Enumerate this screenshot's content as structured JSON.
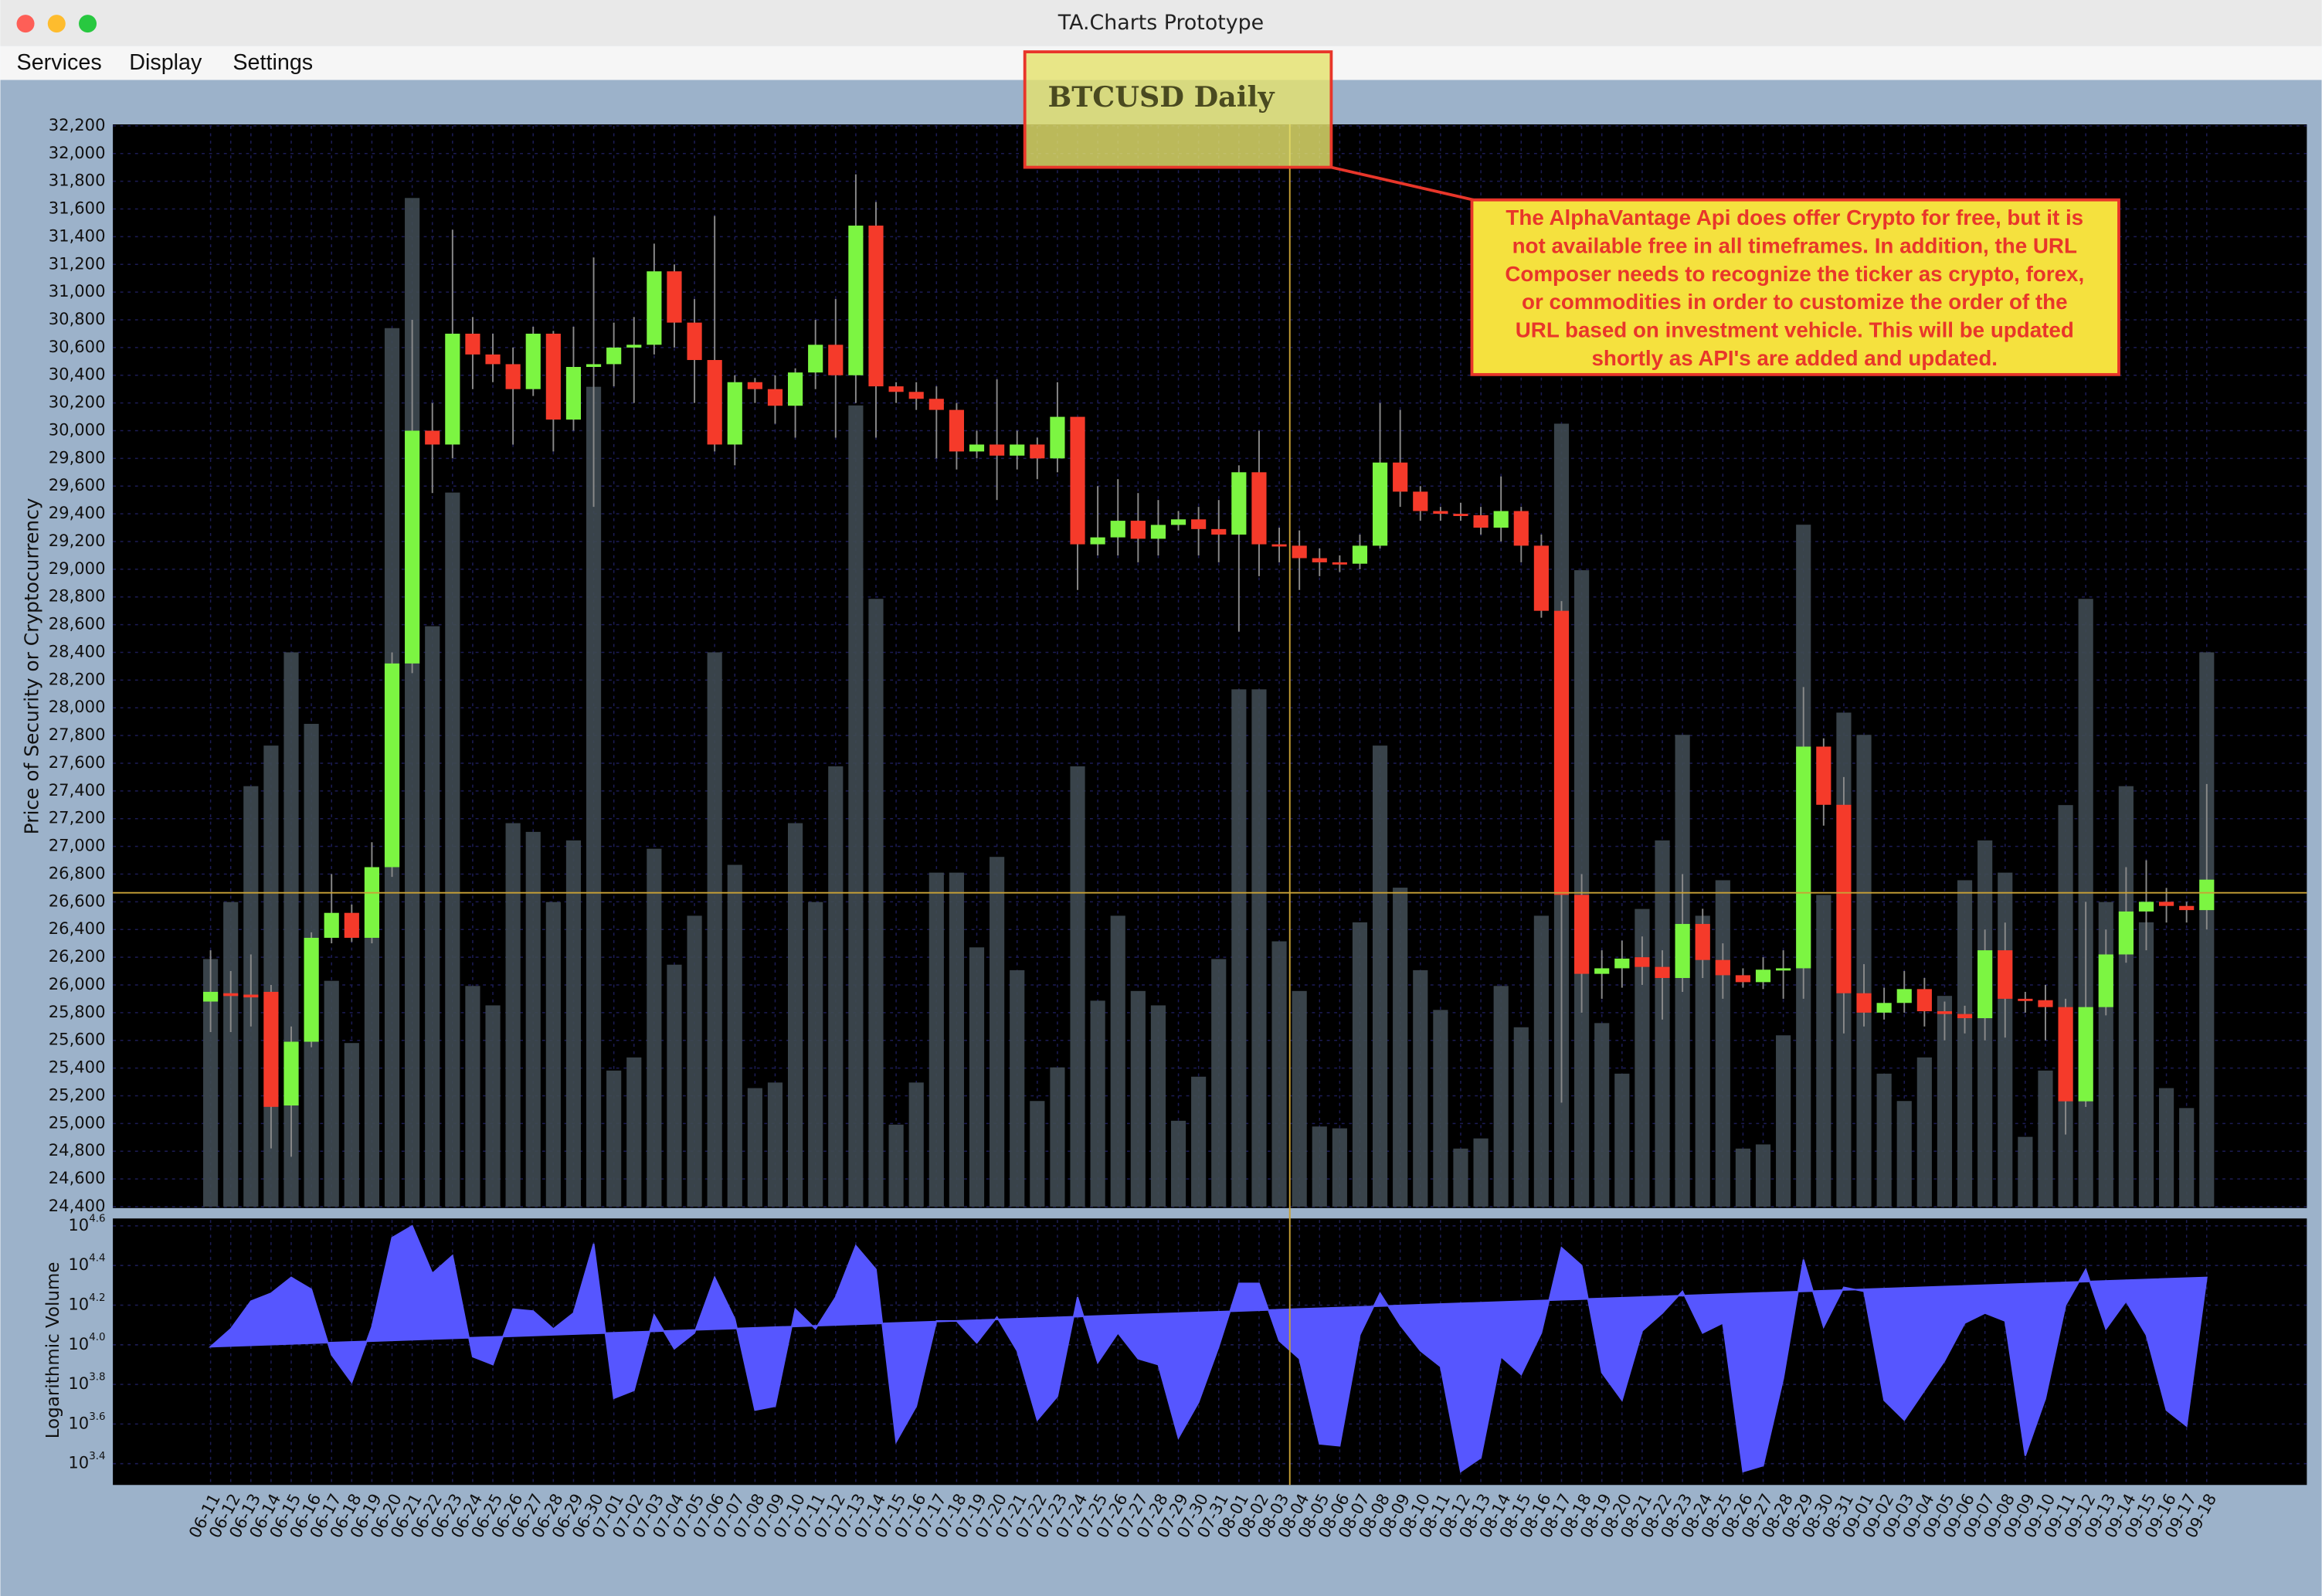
{
  "window": {
    "title": "TA.Charts Prototype",
    "menu": [
      "Services",
      "Display",
      "Settings"
    ]
  },
  "chart_data": {
    "type": "candlestick",
    "title": "BTCUSD Daily",
    "annotation": [
      "The AlphaVantage Api does offer Crypto for free, but it is",
      "not available free in all timeframes. In addition, the URL",
      "Composer needs to recognize the ticker as crypto, forex,",
      "or commodities in order to customize the order of the",
      "URL based on investment vehicle. This will be updated",
      "shortly as API's are added and updated."
    ],
    "ylabel": "Price of Security or Cryptocurrency",
    "y2label": "Logarithmic Volume",
    "up_color": "#7cf542",
    "down_color": "#f53a2a",
    "volume_color": "#3f4a52",
    "area_color": "#5656ff",
    "grid": true,
    "categories": [
      "06-11",
      "06-12",
      "06-13",
      "06-14",
      "06-15",
      "06-16",
      "06-17",
      "06-18",
      "06-19",
      "06-20",
      "06-21",
      "06-22",
      "06-23",
      "06-24",
      "06-25",
      "06-26",
      "06-27",
      "06-28",
      "06-29",
      "06-30",
      "07-01",
      "07-02",
      "07-03",
      "07-04",
      "07-05",
      "07-06",
      "07-07",
      "07-08",
      "07-09",
      "07-10",
      "07-11",
      "07-12",
      "07-13",
      "07-14",
      "07-15",
      "07-16",
      "07-17",
      "07-18",
      "07-19",
      "07-20",
      "07-21",
      "07-22",
      "07-23",
      "07-24",
      "07-25",
      "07-26",
      "07-27",
      "07-28",
      "07-29",
      "07-30",
      "07-31",
      "08-01",
      "08-02",
      "08-03",
      "08-04",
      "08-05",
      "08-06",
      "08-07",
      "08-08",
      "08-09",
      "08-10",
      "08-11",
      "08-12",
      "08-13",
      "08-14",
      "08-15",
      "08-16",
      "08-17",
      "08-18",
      "08-19",
      "08-20",
      "08-21",
      "08-22",
      "08-23",
      "08-24",
      "08-25",
      "08-26",
      "08-27",
      "08-28",
      "08-29",
      "08-30",
      "08-31",
      "09-01",
      "09-02",
      "09-03",
      "09-04",
      "09-05",
      "09-06",
      "09-07",
      "09-08",
      "09-09",
      "09-10",
      "09-11",
      "09-12",
      "09-13",
      "09-14",
      "09-15",
      "09-16",
      "09-17",
      "09-18"
    ],
    "open": [
      25880,
      25940,
      25930,
      25950,
      25130,
      25590,
      26340,
      26520,
      26340,
      26850,
      28320,
      30000,
      29900,
      30700,
      30550,
      30480,
      30300,
      30700,
      30080,
      30460,
      30480,
      30600,
      30620,
      31150,
      30780,
      30510,
      29900,
      30350,
      30300,
      30180,
      30420,
      30620,
      30400,
      31480,
      30320,
      30280,
      30230,
      30150,
      29850,
      29900,
      29820,
      29900,
      29800,
      30100,
      29180,
      29230,
      29350,
      29220,
      29320,
      29360,
      29290,
      29250,
      29700,
      29180,
      29170,
      29080,
      29050,
      29040,
      29170,
      29770,
      29560,
      29420,
      29400,
      29390,
      29300,
      29420,
      29170,
      28700,
      26650,
      26080,
      26120,
      26200,
      26130,
      26050,
      26440,
      26180,
      26070,
      26020,
      26110,
      26120,
      27720,
      27300,
      25940,
      25800,
      25870,
      25970,
      25810,
      25790,
      25760,
      26250,
      25900,
      25890,
      25840,
      25160,
      25840,
      26220,
      26530,
      26600,
      26570,
      26540
    ],
    "high": [
      26250,
      26100,
      26220,
      26000,
      25700,
      26380,
      26800,
      26580,
      27030,
      28400,
      30800,
      30200,
      31450,
      30820,
      30700,
      30600,
      30750,
      30720,
      30750,
      31250,
      30780,
      30820,
      31350,
      31200,
      30950,
      31550,
      30400,
      30380,
      30400,
      30450,
      30800,
      30950,
      31850,
      31650,
      30350,
      30350,
      30320,
      30200,
      30000,
      30370,
      30000,
      29950,
      30350,
      30100,
      29600,
      29650,
      29550,
      29500,
      29420,
      29450,
      29500,
      29750,
      30000,
      29300,
      29280,
      29150,
      29100,
      29250,
      30200,
      30150,
      29600,
      29450,
      29480,
      29450,
      29670,
      29450,
      29250,
      28770,
      26800,
      26250,
      26320,
      26350,
      26250,
      26800,
      26550,
      26300,
      26120,
      26200,
      26250,
      28150,
      27780,
      27500,
      26150,
      25980,
      26100,
      26050,
      25880,
      25850,
      26400,
      26450,
      25950,
      26000,
      25900,
      26600,
      26400,
      26850,
      26900,
      26700,
      26600,
      27450
    ],
    "low": [
      25660,
      25660,
      25700,
      24820,
      24760,
      25550,
      26300,
      26310,
      26300,
      26780,
      28250,
      29550,
      29800,
      30300,
      30350,
      29900,
      30250,
      29850,
      30000,
      29450,
      30320,
      30200,
      30550,
      30600,
      30200,
      29850,
      29750,
      30200,
      30050,
      29950,
      30300,
      29950,
      30200,
      29950,
      30200,
      30150,
      29800,
      29720,
      29800,
      29500,
      29720,
      29650,
      29700,
      28850,
      29100,
      29100,
      29050,
      29100,
      29280,
      29100,
      29050,
      28550,
      28950,
      29050,
      28850,
      28950,
      28980,
      29000,
      29150,
      29450,
      29350,
      29350,
      29350,
      29250,
      29200,
      29050,
      28650,
      25150,
      25800,
      25900,
      25980,
      26000,
      25750,
      25950,
      26050,
      25900,
      25980,
      25970,
      25900,
      25900,
      27150,
      25650,
      25700,
      25750,
      25800,
      25700,
      25600,
      25650,
      25600,
      25620,
      25800,
      25600,
      24920,
      25120,
      25780,
      26160,
      26250,
      26450,
      26450,
      26400
    ],
    "close": [
      25950,
      25920,
      25910,
      25120,
      25590,
      26340,
      26520,
      26340,
      26850,
      28320,
      30000,
      29900,
      30700,
      30550,
      30480,
      30300,
      30700,
      30080,
      30460,
      30480,
      30600,
      30620,
      31150,
      30780,
      30510,
      29900,
      30350,
      30300,
      30180,
      30420,
      30620,
      30400,
      31480,
      30320,
      30280,
      30230,
      30150,
      29850,
      29900,
      29820,
      29900,
      29800,
      30100,
      29180,
      29230,
      29350,
      29220,
      29320,
      29360,
      29290,
      29250,
      29700,
      29180,
      29170,
      29080,
      29050,
      29040,
      29170,
      29770,
      29560,
      29420,
      29400,
      29390,
      29300,
      29420,
      29170,
      28700,
      26650,
      26080,
      26120,
      26190,
      26130,
      26050,
      26440,
      26180,
      26070,
      26020,
      26110,
      26120,
      27720,
      27300,
      25940,
      25800,
      25870,
      25970,
      25810,
      25790,
      25760,
      26250,
      25900,
      25890,
      25840,
      25160,
      25840,
      26220,
      26530,
      26600,
      26570,
      26540,
      26760
    ],
    "volume": [
      3.99,
      4.08,
      4.22,
      4.26,
      4.34,
      4.28,
      3.95,
      3.81,
      4.09,
      4.54,
      4.6,
      4.36,
      4.45,
      3.94,
      3.9,
      4.18,
      4.17,
      4.08,
      4.16,
      4.51,
      3.73,
      3.77,
      4.15,
      3.98,
      4.06,
      4.34,
      4.13,
      3.67,
      3.69,
      4.18,
      4.08,
      4.24,
      4.5,
      4.38,
      3.51,
      3.69,
      4.12,
      4.12,
      4.01,
      4.14,
      3.97,
      3.62,
      3.74,
      4.24,
      3.91,
      4.06,
      3.93,
      3.9,
      3.53,
      3.71,
      3.99,
      4.31,
      4.31,
      4.02,
      3.93,
      3.5,
      3.49,
      4.05,
      4.26,
      4.1,
      3.97,
      3.89,
      3.36,
      3.43,
      3.94,
      3.85,
      4.06,
      4.49,
      4.4,
      3.86,
      3.72,
      4.07,
      4.16,
      4.27,
      4.06,
      4.11,
      3.36,
      3.39,
      3.83,
      4.43,
      4.09,
      4.29,
      4.27,
      3.72,
      3.62,
      3.77,
      3.92,
      4.11,
      4.16,
      4.12,
      3.44,
      3.73,
      4.2,
      4.38,
      4.08,
      4.22,
      4.05,
      3.67,
      3.59,
      4.34
    ],
    "ylim": [
      24400,
      32200
    ],
    "yticks": [
      {
        "value": 24400,
        "label": "24,400"
      },
      {
        "value": 24600,
        "label": "24,600"
      },
      {
        "value": 24800,
        "label": "24,800"
      },
      {
        "value": 25000,
        "label": "25,000"
      },
      {
        "value": 25200,
        "label": "25,200"
      },
      {
        "value": 25400,
        "label": "25,400"
      },
      {
        "value": 25600,
        "label": "25,600"
      },
      {
        "value": 25800,
        "label": "25,800"
      },
      {
        "value": 26000,
        "label": "26,000"
      },
      {
        "value": 26200,
        "label": "26,200"
      },
      {
        "value": 26400,
        "label": "26,400"
      },
      {
        "value": 26600,
        "label": "26,600"
      },
      {
        "value": 26800,
        "label": "26,800"
      },
      {
        "value": 27000,
        "label": "27,000"
      },
      {
        "value": 27200,
        "label": "27,200"
      },
      {
        "value": 27400,
        "label": "27,400"
      },
      {
        "value": 27600,
        "label": "27,600"
      },
      {
        "value": 27800,
        "label": "27,800"
      },
      {
        "value": 28000,
        "label": "28,000"
      },
      {
        "value": 28200,
        "label": "28,200"
      },
      {
        "value": 28400,
        "label": "28,400"
      },
      {
        "value": 28600,
        "label": "28,600"
      },
      {
        "value": 28800,
        "label": "28,800"
      },
      {
        "value": 29000,
        "label": "29,000"
      },
      {
        "value": 29200,
        "label": "29,200"
      },
      {
        "value": 29400,
        "label": "29,400"
      },
      {
        "value": 29600,
        "label": "29,600"
      },
      {
        "value": 29800,
        "label": "29,800"
      },
      {
        "value": 30000,
        "label": "30,000"
      },
      {
        "value": 30200,
        "label": "30,200"
      },
      {
        "value": 30400,
        "label": "30,400"
      },
      {
        "value": 30600,
        "label": "30,600"
      },
      {
        "value": 30800,
        "label": "30,800"
      },
      {
        "value": 31000,
        "label": "31,000"
      },
      {
        "value": 31200,
        "label": "31,200"
      },
      {
        "value": 31400,
        "label": "31,400"
      },
      {
        "value": 31600,
        "label": "31,600"
      },
      {
        "value": 31800,
        "label": "31,800"
      },
      {
        "value": 32000,
        "label": "32,000"
      },
      {
        "value": 32200,
        "label": "32,200"
      }
    ],
    "y2lim": [
      3.3,
      4.63
    ],
    "y2ticks": [
      {
        "value": 3.4,
        "label": "10",
        "exponent": "3.4"
      },
      {
        "value": 3.6,
        "label": "10",
        "exponent": "3.6"
      },
      {
        "value": 3.8,
        "label": "10",
        "exponent": "3.8"
      },
      {
        "value": 4.0,
        "label": "10",
        "exponent": "4.0"
      },
      {
        "value": 4.2,
        "label": "10",
        "exponent": "4.2"
      },
      {
        "value": 4.4,
        "label": "10",
        "exponent": "4.4"
      },
      {
        "value": 4.6,
        "label": "10",
        "exponent": "4.6"
      }
    ]
  }
}
